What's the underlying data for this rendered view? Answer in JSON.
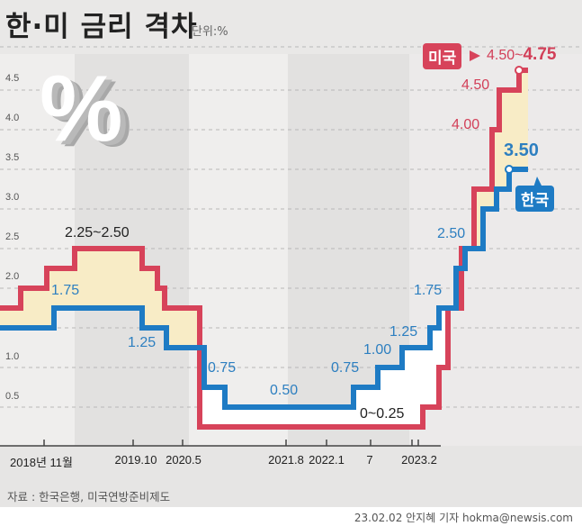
{
  "header": {
    "title": "한·미 금리 격차",
    "unit": "단위:%"
  },
  "decor": {
    "percent_icon": "%"
  },
  "colors": {
    "us": "#d7435a",
    "korea": "#1e7bc4",
    "gap_fill": "#f8ecc6",
    "background": "#e9e8e7"
  },
  "chart_data": {
    "type": "line",
    "step": true,
    "title": "한·미 금리 격차",
    "unit": "단위:%",
    "ylim": [
      0,
      5
    ],
    "yticks": [
      "0.5",
      "1.0",
      "1.5",
      "2.0",
      "2.5",
      "3.0",
      "3.5",
      "4.0",
      "4.5"
    ],
    "grid": true,
    "xticks": [
      "2018년 11월",
      "2019.10",
      "2020.5",
      "2021.8",
      "2022.1",
      "7",
      "2023.2"
    ],
    "series": [
      {
        "name": "미국",
        "values": [
          1.75,
          2.0,
          2.25,
          2.5,
          2.25,
          2.0,
          1.75,
          0.25,
          0.5,
          1.0,
          1.75,
          2.5,
          3.25,
          4.0,
          4.5,
          4.75
        ]
      },
      {
        "name": "한국",
        "values": [
          1.5,
          1.75,
          1.5,
          1.25,
          0.75,
          0.5,
          0.75,
          1.0,
          1.25,
          1.5,
          1.75,
          2.25,
          2.5,
          3.0,
          3.25,
          3.5
        ]
      }
    ],
    "annotations": {
      "us_peak_2019": "2.25~2.50",
      "us_zero": "0~0.25",
      "us_400": "4.00",
      "us_450": "4.50",
      "us_latest_range": "4.50~",
      "us_latest_top": "4.75",
      "kr_175a": "1.75",
      "kr_125a": "1.25",
      "kr_075a": "0.75",
      "kr_050": "0.50",
      "kr_075b": "0.75",
      "kr_100": "1.00",
      "kr_125b": "1.25",
      "kr_175b": "1.75",
      "kr_250": "2.50",
      "kr_latest": "3.50",
      "us_badge": "미국",
      "kr_badge": "한국"
    }
  },
  "footer": {
    "source": "자료 : 한국은행, 미국연방준비제도",
    "credit": "23.02.02 안지혜 기자 hokma@newsis.com"
  }
}
